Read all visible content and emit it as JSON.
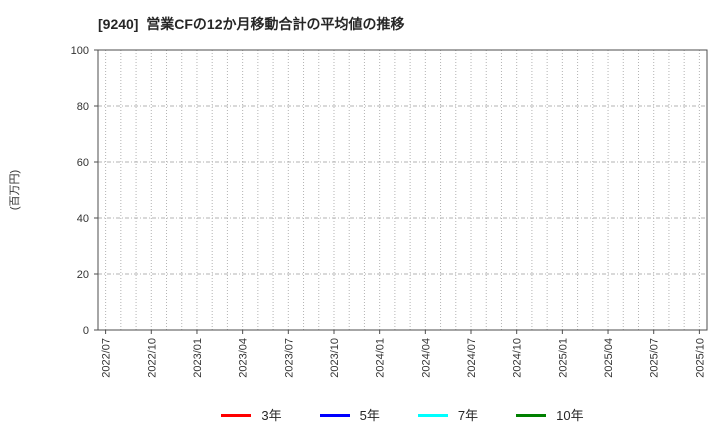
{
  "chart_data": {
    "type": "line",
    "title": "[9240]  営業CFの12か月移動合計の平均値の推移",
    "ylabel": "(百万円)",
    "ylim": [
      0,
      100
    ],
    "yticks": [
      0,
      20,
      40,
      60,
      80,
      100
    ],
    "x_start": "2022/07",
    "x_end": "2025/10",
    "x_months_total": 40,
    "x_tick_every_months": 3,
    "x_tick_labels": [
      "2022/07",
      "2022/10",
      "2023/01",
      "2023/04",
      "2023/07",
      "2023/10",
      "2024/01",
      "2024/04",
      "2024/07",
      "2024/10",
      "2025/01",
      "2025/04",
      "2025/07",
      "2025/10"
    ],
    "grid": true,
    "has_plotted_lines": false,
    "legend_position": "bottom",
    "axis_color": "#4d4d4d",
    "tick_label_color": "#333333",
    "grid_color": "#b3b3b3",
    "series": [
      {
        "name": "3年",
        "color": "#ff0000",
        "values": []
      },
      {
        "name": "5年",
        "color": "#0000ff",
        "values": []
      },
      {
        "name": "7年",
        "color": "#00ffff",
        "values": []
      },
      {
        "name": "10年",
        "color": "#008000",
        "values": []
      }
    ]
  }
}
